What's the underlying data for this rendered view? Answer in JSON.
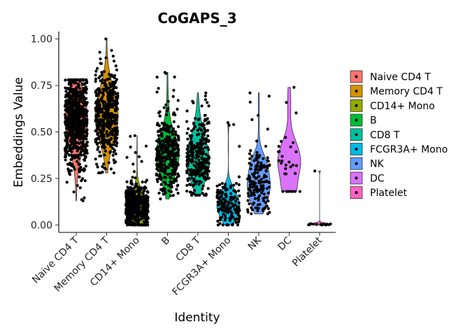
{
  "chart_data": {
    "type": "violin",
    "title": "CoGAPS_3",
    "xlabel": "Identity",
    "ylabel": "Embeddings Value",
    "ylim": [
      -0.04,
      1.04
    ],
    "yticks": [
      0.0,
      0.25,
      0.5,
      0.75,
      1.0
    ],
    "ytick_labels": [
      "0.00",
      "0.25",
      "0.50",
      "0.75",
      "1.00"
    ],
    "categories": [
      "Naive CD4 T",
      "Memory CD4 T",
      "CD14+ Mono",
      "B",
      "CD8 T",
      "FCGR3A+ Mono",
      "NK",
      "DC",
      "Platelet"
    ],
    "legend_position": "right",
    "series": [
      {
        "name": "Naive CD4 T",
        "color": "#F8766D",
        "min": 0.13,
        "max": 0.78,
        "q1": 0.46,
        "median": 0.56,
        "q3": 0.63,
        "n_points": 700
      },
      {
        "name": "Memory CD4 T",
        "color": "#D39200",
        "min": 0.28,
        "max": 1.0,
        "q1": 0.5,
        "median": 0.59,
        "q3": 0.67,
        "n_points": 480
      },
      {
        "name": "CD14+ Mono",
        "color": "#93AA00",
        "min": 0.0,
        "max": 0.48,
        "q1": 0.06,
        "median": 0.1,
        "q3": 0.14,
        "n_points": 480
      },
      {
        "name": "B",
        "color": "#00BA38",
        "min": 0.14,
        "max": 0.82,
        "q1": 0.31,
        "median": 0.38,
        "q3": 0.45,
        "n_points": 340
      },
      {
        "name": "CD8 T",
        "color": "#00C19F",
        "min": 0.16,
        "max": 0.71,
        "q1": 0.3,
        "median": 0.37,
        "q3": 0.44,
        "n_points": 300
      },
      {
        "name": "FCGR3A+ Mono",
        "color": "#00B9E3",
        "min": 0.0,
        "max": 0.55,
        "q1": 0.07,
        "median": 0.11,
        "q3": 0.15,
        "n_points": 160
      },
      {
        "name": "NK",
        "color": "#619CFF",
        "min": 0.06,
        "max": 0.71,
        "q1": 0.16,
        "median": 0.22,
        "q3": 0.28,
        "n_points": 160
      },
      {
        "name": "DC",
        "color": "#DB72FB",
        "min": 0.18,
        "max": 0.74,
        "q1": 0.24,
        "median": 0.33,
        "q3": 0.4,
        "n_points": 32
      },
      {
        "name": "Platelet",
        "color": "#FF61C3",
        "min": 0.0,
        "max": 0.29,
        "q1": 0.0,
        "median": 0.0,
        "q3": 0.01,
        "n_points": 14
      }
    ]
  }
}
